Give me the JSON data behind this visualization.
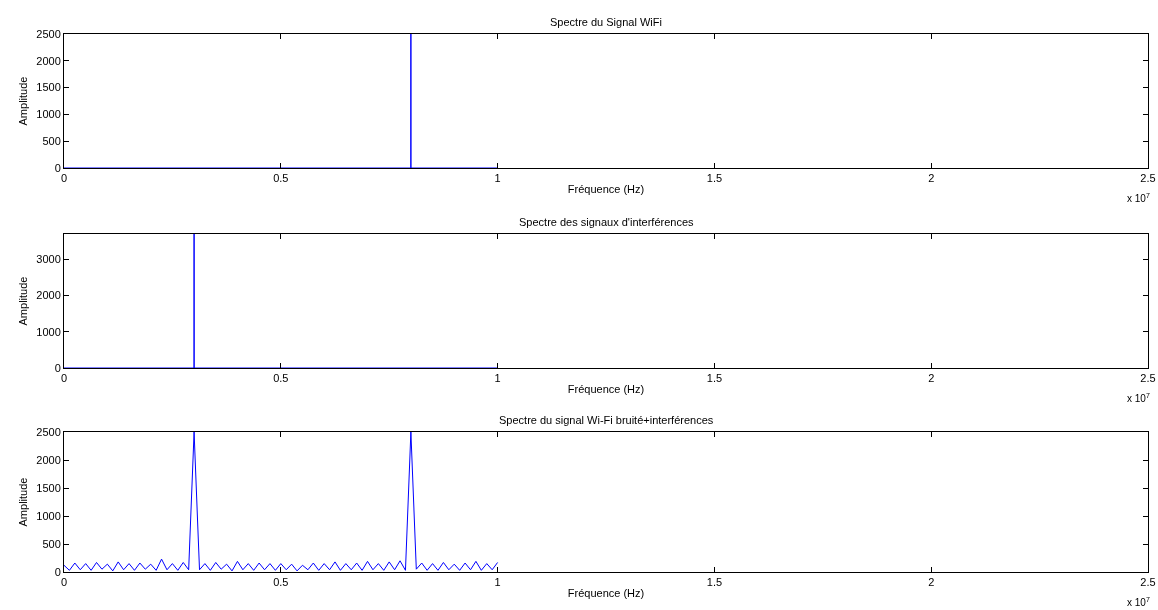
{
  "chart_data": [
    {
      "type": "line",
      "title": "Spectre du Signal WiFi",
      "xlabel": "Fréquence (Hz)",
      "ylabel": "Amplitude",
      "annotations": [
        "x 10$^{7}$"
      ],
      "x": [
        0,
        0.8,
        0.8,
        0.8,
        1
      ],
      "series": [
        {
          "color": "#0000ff",
          "values": [
            0,
            0,
            2500,
            0,
            0
          ]
        }
      ],
      "xlim": [
        0,
        2.5
      ],
      "xticks": [
        0,
        0.5,
        1,
        1.5,
        2,
        2.5
      ],
      "ylim": [
        0,
        2500
      ],
      "yticks": [
        0,
        500,
        1000,
        1500,
        2000,
        2500
      ],
      "grid": false
    },
    {
      "type": "line",
      "title": "Spectre des signaux d'interférences",
      "xlabel": "Fréquence (Hz)",
      "ylabel": "Amplitude",
      "annotations": [
        "x 10$^{7}$"
      ],
      "x": [
        0,
        0.3,
        0.3,
        0.3,
        1
      ],
      "series": [
        {
          "color": "#0000ff",
          "values": [
            0,
            0,
            3700,
            0,
            0
          ]
        }
      ],
      "xlim": [
        0,
        2.5
      ],
      "xticks": [
        0,
        0.5,
        1,
        1.5,
        2,
        2.5
      ],
      "ylim": [
        0,
        3700
      ],
      "yticks": [
        0,
        1000,
        2000,
        3000
      ],
      "grid": false
    },
    {
      "type": "line",
      "title": "Spectre du signal Wi-Fi bruité+interférences",
      "xlabel": "Fréquence (Hz)",
      "ylabel": "Amplitude",
      "annotations": [
        "x 10$^{7}$"
      ],
      "x": [
        0,
        0.0125,
        0.025,
        0.0375,
        0.05,
        0.0625,
        0.075,
        0.0875,
        0.1,
        0.1125,
        0.125,
        0.1375,
        0.15,
        0.1625,
        0.175,
        0.1875,
        0.2,
        0.2125,
        0.225,
        0.2375,
        0.25,
        0.2625,
        0.275,
        0.2875,
        0.3,
        0.3125,
        0.325,
        0.3375,
        0.35,
        0.3625,
        0.375,
        0.3875,
        0.4,
        0.4125,
        0.425,
        0.4375,
        0.45,
        0.4625,
        0.475,
        0.4875,
        0.5,
        0.5125,
        0.525,
        0.5375,
        0.55,
        0.5625,
        0.575,
        0.5875,
        0.6,
        0.6125,
        0.625,
        0.6375,
        0.65,
        0.6625,
        0.675,
        0.6875,
        0.7,
        0.7125,
        0.725,
        0.7375,
        0.75,
        0.7625,
        0.775,
        0.7875,
        0.8,
        0.8125,
        0.825,
        0.8375,
        0.85,
        0.8625,
        0.875,
        0.8875,
        0.9,
        0.9125,
        0.925,
        0.9375,
        0.95,
        0.9625,
        0.975,
        0.9875,
        1
      ],
      "series": [
        {
          "color": "#0000ff",
          "values": [
            120,
            30,
            160,
            40,
            150,
            30,
            170,
            50,
            140,
            20,
            180,
            40,
            150,
            30,
            160,
            50,
            140,
            30,
            230,
            40,
            150,
            30,
            170,
            40,
            2500,
            40,
            150,
            30,
            170,
            50,
            140,
            20,
            190,
            40,
            150,
            30,
            160,
            40,
            150,
            30,
            150,
            40,
            140,
            20,
            120,
            40,
            160,
            30,
            150,
            40,
            180,
            30,
            150,
            40,
            160,
            30,
            190,
            40,
            150,
            30,
            180,
            40,
            200,
            30,
            2500,
            50,
            160,
            30,
            150,
            30,
            170,
            40,
            140,
            30,
            160,
            40,
            190,
            30,
            150,
            40,
            170
          ]
        }
      ],
      "xlim": [
        0,
        2.5
      ],
      "xticks": [
        0,
        0.5,
        1,
        1.5,
        2,
        2.5
      ],
      "ylim": [
        0,
        2500
      ],
      "yticks": [
        0,
        500,
        1000,
        1500,
        2000,
        2500
      ],
      "grid": false
    }
  ]
}
